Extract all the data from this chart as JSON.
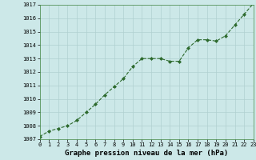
{
  "x": [
    0,
    1,
    2,
    3,
    4,
    5,
    6,
    7,
    8,
    9,
    10,
    11,
    12,
    13,
    14,
    15,
    16,
    17,
    18,
    19,
    20,
    21,
    22,
    23
  ],
  "y": [
    1007.2,
    1007.6,
    1007.8,
    1008.0,
    1008.4,
    1009.0,
    1009.6,
    1010.3,
    1010.9,
    1011.5,
    1012.4,
    1013.0,
    1013.0,
    1013.0,
    1012.8,
    1012.8,
    1013.8,
    1014.4,
    1014.4,
    1014.3,
    1014.7,
    1015.5,
    1016.3,
    1017.1
  ],
  "ylim": [
    1007,
    1017
  ],
  "yticks": [
    1007,
    1008,
    1009,
    1010,
    1011,
    1012,
    1013,
    1014,
    1015,
    1016,
    1017
  ],
  "xlim": [
    0,
    23
  ],
  "xticks": [
    0,
    1,
    2,
    3,
    4,
    5,
    6,
    7,
    8,
    9,
    10,
    11,
    12,
    13,
    14,
    15,
    16,
    17,
    18,
    19,
    20,
    21,
    22,
    23
  ],
  "xlabel": "Graphe pression niveau de la mer (hPa)",
  "line_color": "#2d6a2d",
  "marker": "D",
  "marker_size": 2.0,
  "bg_color": "#cce8e8",
  "grid_color": "#b0d0d0",
  "tick_fontsize": 5.0,
  "xlabel_fontsize": 6.5,
  "linewidth": 0.8
}
